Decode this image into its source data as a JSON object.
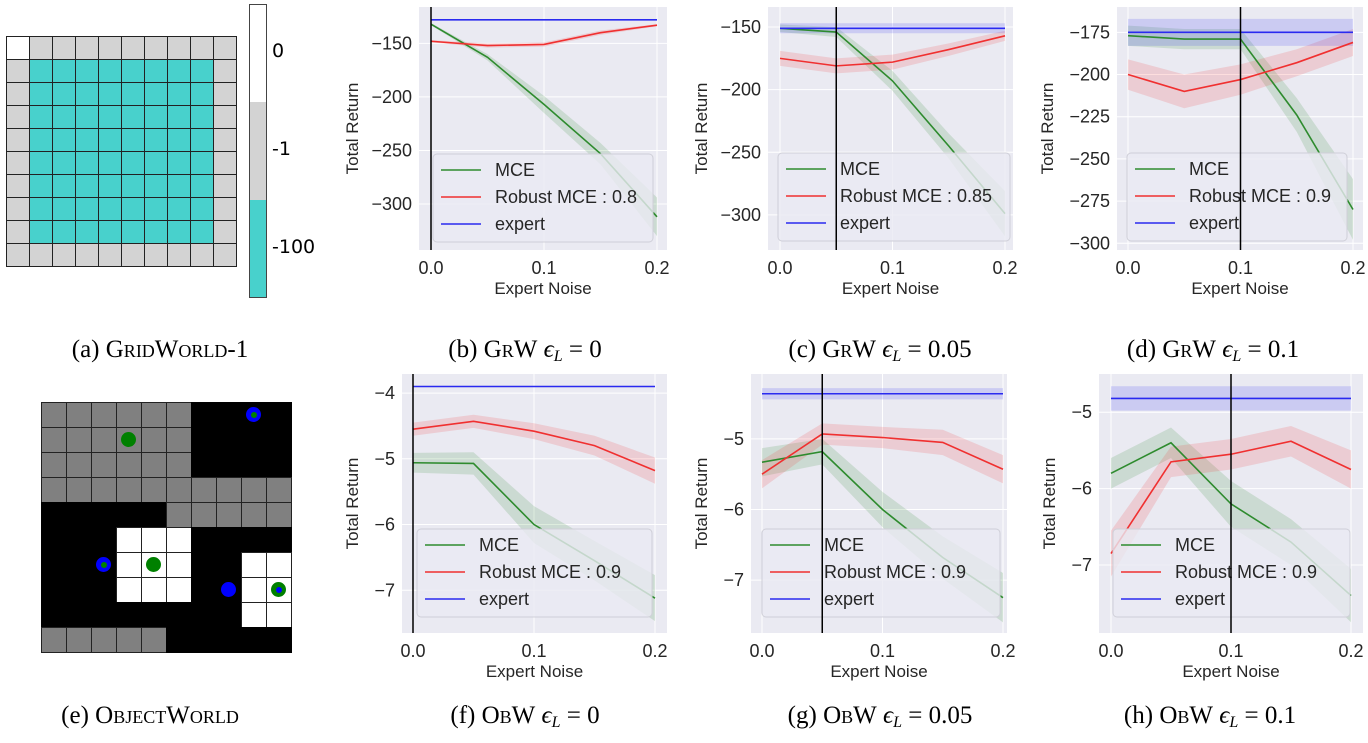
{
  "panels": {
    "a": {
      "caption": {
        "label": "(a)",
        "name": "GridWorld-1"
      },
      "colorbar": {
        "labels": [
          "0",
          "-1",
          "-100"
        ],
        "colors": [
          "#ffffff",
          "#d3d3d3",
          "#48d1cc"
        ]
      },
      "grid": [
        [
          0,
          -1,
          -1,
          -1,
          -1,
          -1,
          -1,
          -1,
          -1,
          -1
        ],
        [
          -1,
          -100,
          -100,
          -100,
          -100,
          -100,
          -100,
          -100,
          -100,
          -1
        ],
        [
          -1,
          -100,
          -100,
          -100,
          -100,
          -100,
          -100,
          -100,
          -100,
          -1
        ],
        [
          -1,
          -100,
          -100,
          -100,
          -100,
          -100,
          -100,
          -100,
          -100,
          -1
        ],
        [
          -1,
          -100,
          -100,
          -100,
          -100,
          -100,
          -100,
          -100,
          -100,
          -1
        ],
        [
          -1,
          -100,
          -100,
          -100,
          -100,
          -100,
          -100,
          -100,
          -100,
          -1
        ],
        [
          -1,
          -100,
          -100,
          -100,
          -100,
          -100,
          -100,
          -100,
          -100,
          -1
        ],
        [
          -1,
          -100,
          -100,
          -100,
          -100,
          -100,
          -100,
          -100,
          -100,
          -1
        ],
        [
          -1,
          -100,
          -100,
          -100,
          -100,
          -100,
          -100,
          -100,
          -100,
          -1
        ],
        [
          -1,
          -1,
          -1,
          -1,
          -1,
          -1,
          -1,
          -1,
          -1,
          -1
        ]
      ]
    },
    "e": {
      "caption": {
        "label": "(e)",
        "name": "ObjectWorld"
      },
      "cell_colors": {
        "g": "#808080",
        "k": "#000000",
        "w": "#ffffff"
      },
      "grid": [
        "ggggggkkkk",
        "ggggggkkkk",
        "ggggggkkkk",
        "gggggggggg",
        "kkkkkggggg",
        "kkkwwwkkkk",
        "kkkwwwkkww",
        "kkkwwwkkww",
        "kkkkkkkkww",
        "gggggkkkkk"
      ],
      "objects": [
        {
          "row": 0,
          "col": 8,
          "outer": "#0000ff",
          "inner": "#008000"
        },
        {
          "row": 1,
          "col": 3,
          "outer": "#008000",
          "inner": "#008000"
        },
        {
          "row": 6,
          "col": 2,
          "outer": "#0000ff",
          "inner": "#008000"
        },
        {
          "row": 6,
          "col": 4,
          "outer": "#008000",
          "inner": "#008000"
        },
        {
          "row": 7,
          "col": 7,
          "outer": "#0000ff",
          "inner": "#0000ff"
        },
        {
          "row": 7,
          "col": 9,
          "outer": "#008000",
          "inner": "#0000ff"
        }
      ]
    }
  },
  "chart_data": [
    {
      "type": "line",
      "caption": {
        "label": "(b)",
        "name": "GrW",
        "symbol": "ϵ",
        "sub": "L",
        "rhs": "= 0"
      },
      "xlabel": "Expert Noise",
      "ylabel": "Total Return",
      "x": [
        0,
        0.05,
        0.1,
        0.15,
        0.2
      ],
      "xticks": [
        "0.0",
        "0.1",
        "0.2"
      ],
      "yticks": [
        "−150",
        "−200",
        "−250",
        "−300"
      ],
      "xlim": [
        0,
        0.2
      ],
      "ylim": [
        -343,
        -116
      ],
      "vline": 0,
      "grid": true,
      "legend": "lower-left",
      "series": [
        {
          "name": "MCE",
          "color": "#2e8b2e",
          "values": [
            -132,
            -163,
            -207,
            -253,
            -312
          ],
          "band": [
            1,
            3,
            8,
            10,
            18
          ]
        },
        {
          "name": "Robust MCE : 0.8",
          "color": "#f03030",
          "values": [
            -148,
            -152,
            -151,
            -140,
            -133
          ],
          "band": [
            1,
            2,
            2,
            2,
            1
          ]
        },
        {
          "name": "expert",
          "color": "#2a2af0",
          "values": [
            -128,
            -128,
            -128,
            -128,
            -128
          ],
          "band": [
            0.5,
            0.5,
            0.5,
            0.5,
            0.5
          ]
        }
      ]
    },
    {
      "type": "line",
      "caption": {
        "label": "(c)",
        "name": "GrW",
        "symbol": "ϵ",
        "sub": "L",
        "rhs": "= 0.05"
      },
      "xlabel": "Expert Noise",
      "ylabel": "Total Return",
      "x": [
        0,
        0.05,
        0.1,
        0.15,
        0.2
      ],
      "xticks": [
        "0.0",
        "0.1",
        "0.2"
      ],
      "yticks": [
        "−150",
        "−200",
        "−250",
        "−300"
      ],
      "xlim": [
        0,
        0.2
      ],
      "ylim": [
        -328,
        -134
      ],
      "vline": 0.05,
      "grid": true,
      "legend": "lower-left",
      "series": [
        {
          "name": "MCE",
          "color": "#2e8b2e",
          "values": [
            -151,
            -154,
            -193,
            -245,
            -299
          ],
          "band": [
            3,
            4,
            8,
            10,
            18
          ]
        },
        {
          "name": "Robust MCE : 0.85",
          "color": "#f03030",
          "values": [
            -175,
            -181,
            -178,
            -168,
            -157
          ],
          "band": [
            6,
            6,
            6,
            5,
            4
          ]
        },
        {
          "name": "expert",
          "color": "#2a2af0",
          "values": [
            -151,
            -151,
            -151,
            -151,
            -151
          ],
          "band": [
            4,
            4,
            4,
            4,
            4
          ]
        }
      ]
    },
    {
      "type": "line",
      "caption": {
        "label": "(d)",
        "name": "GrW",
        "symbol": "ϵ",
        "sub": "L",
        "rhs": "= 0.1"
      },
      "xlabel": "Expert Noise",
      "ylabel": "Total Return",
      "x": [
        0,
        0.05,
        0.1,
        0.15,
        0.2
      ],
      "xticks": [
        "0.0",
        "0.1",
        "0.2"
      ],
      "yticks": [
        "−175",
        "−200",
        "−225",
        "−250",
        "−275",
        "−300"
      ],
      "xlim": [
        0,
        0.2
      ],
      "ylim": [
        -304,
        -160
      ],
      "vline": 0.1,
      "grid": true,
      "legend": "lower-left",
      "series": [
        {
          "name": "MCE",
          "color": "#2e8b2e",
          "values": [
            -177,
            -179,
            -179,
            -224,
            -280
          ],
          "band": [
            6,
            6,
            6,
            10,
            18
          ]
        },
        {
          "name": "Robust MCE : 0.9",
          "color": "#f03030",
          "values": [
            -200,
            -210,
            -203,
            -193,
            -181
          ],
          "band": [
            9,
            10,
            9,
            8,
            8
          ]
        },
        {
          "name": "expert",
          "color": "#2a2af0",
          "values": [
            -175,
            -175,
            -175,
            -175,
            -175
          ],
          "band": [
            8,
            8,
            8,
            8,
            8
          ]
        }
      ]
    },
    {
      "type": "line",
      "caption": {
        "label": "(f)",
        "name": "ObW",
        "symbol": "ϵ",
        "sub": "L",
        "rhs": "= 0"
      },
      "xlabel": "Expert Noise",
      "ylabel": "Total Return",
      "x": [
        0,
        0.05,
        0.1,
        0.15,
        0.2
      ],
      "xticks": [
        "0.0",
        "0.1",
        "0.2"
      ],
      "yticks": [
        "−4",
        "−5",
        "−6",
        "−7"
      ],
      "xlim": [
        0,
        0.2
      ],
      "ylim": [
        -7.65,
        -3.71
      ],
      "vline": 0,
      "grid": true,
      "legend": "lower-left",
      "series": [
        {
          "name": "MCE",
          "color": "#2e8b2e",
          "values": [
            -5.06,
            -5.07,
            -6.0,
            -6.55,
            -7.12
          ],
          "band": [
            0.15,
            0.17,
            0.28,
            0.3,
            0.35
          ]
        },
        {
          "name": "Robust MCE : 0.9",
          "color": "#f03030",
          "values": [
            -4.55,
            -4.43,
            -4.58,
            -4.8,
            -5.18
          ],
          "band": [
            0.1,
            0.1,
            0.12,
            0.15,
            0.2
          ]
        },
        {
          "name": "expert",
          "color": "#2a2af0",
          "values": [
            -3.9,
            -3.9,
            -3.9,
            -3.9,
            -3.9
          ],
          "band": [
            0.01,
            0.01,
            0.01,
            0.01,
            0.01
          ]
        }
      ]
    },
    {
      "type": "line",
      "caption": {
        "label": "(g)",
        "name": "ObW",
        "symbol": "ϵ",
        "sub": "L",
        "rhs": "= 0.05"
      },
      "xlabel": "Expert Noise",
      "ylabel": "Total Return",
      "x": [
        0,
        0.05,
        0.1,
        0.15,
        0.2
      ],
      "xticks": [
        "0.0",
        "0.1",
        "0.2"
      ],
      "yticks": [
        "−5",
        "−6",
        "−7"
      ],
      "xlim": [
        0,
        0.2
      ],
      "ylim": [
        -7.75,
        -4.08
      ],
      "vline": 0.05,
      "grid": true,
      "legend": "lower-left",
      "series": [
        {
          "name": "MCE",
          "color": "#2e8b2e",
          "values": [
            -5.33,
            -5.18,
            -6.0,
            -6.68,
            -7.25
          ],
          "band": [
            0.2,
            0.18,
            0.25,
            0.3,
            0.35
          ]
        },
        {
          "name": "Robust MCE : 0.9",
          "color": "#f03030",
          "values": [
            -5.5,
            -4.93,
            -4.98,
            -5.05,
            -5.43
          ],
          "band": [
            0.2,
            0.15,
            0.15,
            0.18,
            0.2
          ]
        },
        {
          "name": "expert",
          "color": "#2a2af0",
          "values": [
            -4.36,
            -4.36,
            -4.36,
            -4.36,
            -4.36
          ],
          "band": [
            0.08,
            0.08,
            0.08,
            0.08,
            0.08
          ]
        }
      ]
    },
    {
      "type": "line",
      "caption": {
        "label": "(h)",
        "name": "ObW",
        "symbol": "ϵ",
        "sub": "L",
        "rhs": "= 0.1"
      },
      "xlabel": "Expert Noise",
      "ylabel": "Total Return",
      "x": [
        0,
        0.05,
        0.1,
        0.15,
        0.2
      ],
      "xticks": [
        "0.0",
        "0.1",
        "0.2"
      ],
      "yticks": [
        "−5",
        "−6",
        "−7"
      ],
      "xlim": [
        0,
        0.2
      ],
      "ylim": [
        -7.89,
        -4.5
      ],
      "vline": 0.1,
      "grid": true,
      "legend": "lower-left",
      "series": [
        {
          "name": "MCE",
          "color": "#2e8b2e",
          "values": [
            -5.8,
            -5.4,
            -6.2,
            -6.7,
            -7.4
          ],
          "band": [
            0.2,
            0.2,
            0.3,
            0.3,
            0.35
          ]
        },
        {
          "name": "Robust MCE : 0.9",
          "color": "#f03030",
          "values": [
            -6.85,
            -5.65,
            -5.55,
            -5.38,
            -5.75
          ],
          "band": [
            0.3,
            0.2,
            0.2,
            0.2,
            0.25
          ]
        },
        {
          "name": "expert",
          "color": "#2a2af0",
          "values": [
            -4.82,
            -4.82,
            -4.82,
            -4.82,
            -4.82
          ],
          "band": [
            0.16,
            0.16,
            0.16,
            0.16,
            0.16
          ]
        }
      ]
    }
  ]
}
